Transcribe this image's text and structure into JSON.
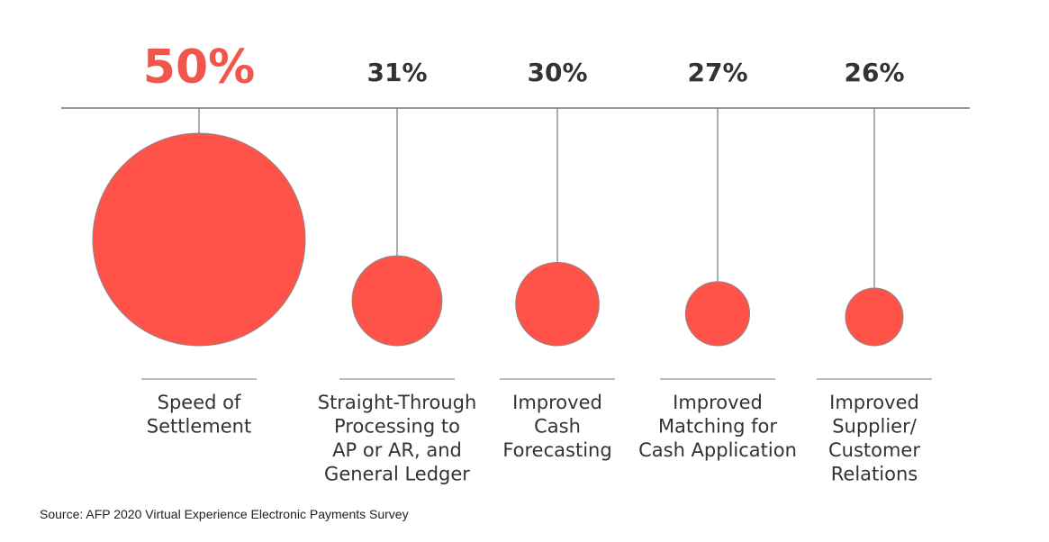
{
  "chart_data": {
    "type": "bubble",
    "unit": "%",
    "categories": [
      [
        "Speed of",
        "Settlement"
      ],
      [
        "Straight-Through",
        "Processing to",
        "AP or AR, and",
        "General Ledger"
      ],
      [
        "Improved",
        "Cash",
        "Forecasting"
      ],
      [
        "Improved",
        "Matching for",
        "Cash Application"
      ],
      [
        "Improved",
        "Supplier/",
        "Customer",
        "Relations"
      ]
    ],
    "values": [
      50,
      31,
      30,
      27,
      26
    ],
    "value_labels": [
      "50%",
      "31%",
      "30%",
      "27%",
      "26%"
    ],
    "highlight_index": 0
  },
  "colors": {
    "bubble": "#FF5349",
    "highlight_text": "#F0564C",
    "text": "#333333",
    "line": "#777777"
  },
  "source": "Source: AFP 2020 Virtual Experience Electronic Payments Survey"
}
